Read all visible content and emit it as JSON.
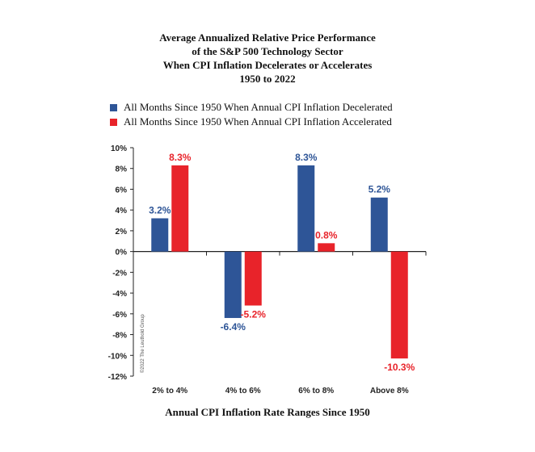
{
  "title_lines": [
    "Average Annualized Relative Price Performance",
    "of the S&P 500 Technology Sector",
    "When CPI Inflation Decelerates or Accelerates",
    "1950 to 2022"
  ],
  "watermark": "©2022 The Leuthold Group",
  "colors": {
    "decelerated": "#2e5597",
    "accelerated": "#e8232a"
  },
  "chart_data": {
    "type": "bar",
    "title": "Average Annualized Relative Price Performance of the S&P 500 Technology Sector When CPI Inflation Decelerates or Accelerates 1950 to 2022",
    "xlabel": "Annual CPI Inflation Rate Ranges Since 1950",
    "ylabel": "",
    "categories": [
      "2% to 4%",
      "4% to 6%",
      "6% to 8%",
      "Above 8%"
    ],
    "series": [
      {
        "name": "All Months Since 1950 When Annual CPI Inflation Decelerated",
        "values": [
          3.2,
          -6.4,
          8.3,
          5.2
        ],
        "labels": [
          "3.2%",
          "-6.4%",
          "8.3%",
          "5.2%"
        ]
      },
      {
        "name": "All Months Since 1950 When Annual CPI Inflation Accelerated",
        "values": [
          8.3,
          -5.2,
          0.8,
          -10.3
        ],
        "labels": [
          "8.3%",
          "-5.2%",
          "0.8%",
          "-10.3%"
        ]
      }
    ],
    "ylim": [
      -12,
      10
    ],
    "yticks": [
      10,
      8,
      6,
      4,
      2,
      0,
      -2,
      -4,
      -6,
      -8,
      -10,
      -12
    ],
    "ytick_labels": [
      "10%",
      "8%",
      "6%",
      "4%",
      "2%",
      "0%",
      "-2%",
      "-4%",
      "-6%",
      "-8%",
      "-10%",
      "-12%"
    ],
    "grid": false,
    "legend_position": "top-left"
  }
}
